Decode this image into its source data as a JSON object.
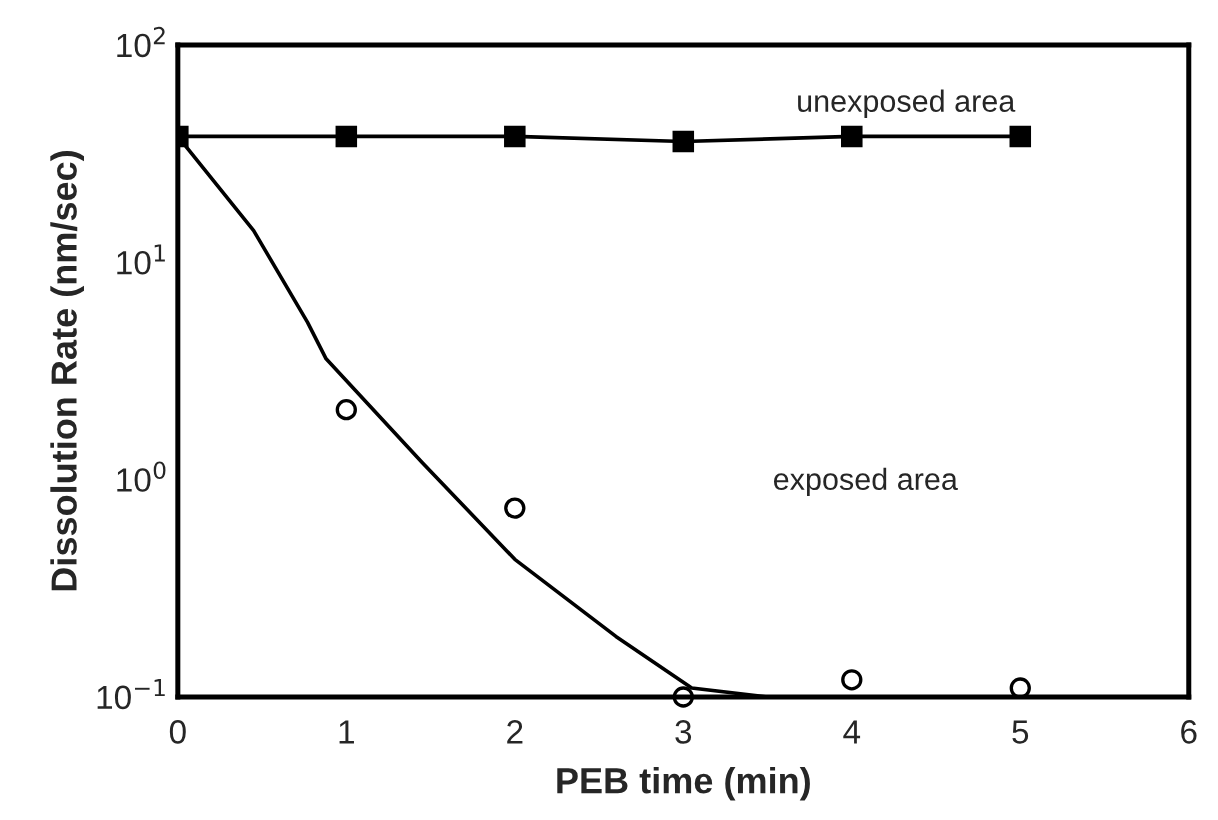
{
  "chart_data": {
    "type": "scatter",
    "xlabel": "PEB time (min)",
    "ylabel": "Dissolution Rate (nm/sec)",
    "log": "y",
    "xlim": [
      0,
      6
    ],
    "xticks": [
      0,
      1,
      2,
      3,
      4,
      5,
      6
    ],
    "ylim": [
      0.1,
      100
    ],
    "yticks": [
      {
        "value": 0.1,
        "label": "10$^{−1}$"
      },
      {
        "value": 1,
        "label": "10$^{0}$"
      },
      {
        "value": 10,
        "label": "10$^{1}$"
      },
      {
        "value": 100,
        "label": "10$^{2}$"
      }
    ],
    "grid": false,
    "legend": false,
    "series": [
      {
        "type": "line",
        "color": "#000000",
        "marker": "square",
        "line_style": "solid",
        "x": [
          0,
          1,
          2,
          3,
          4,
          5
        ],
        "values": [
          38,
          38,
          38,
          36,
          38,
          38
        ]
      },
      {
        "color": "#000000",
        "marker": "circle",
        "x": [
          1,
          2,
          3,
          4,
          5
        ],
        "values": [
          2.1,
          0.74,
          0.1,
          0.12,
          0.11
        ]
      },
      {
        "type": "line",
        "color": "#000000",
        "marker": "none",
        "line_style": "solid",
        "x": [
          0,
          0.45,
          0.77,
          0.88,
          1.45,
          2.0,
          2.6,
          3.05,
          3.5,
          3.9,
          4.4
        ],
        "values": [
          38,
          14,
          5.3,
          3.6,
          1.2,
          0.43,
          0.19,
          0.11,
          0.1,
          0.1,
          0.1
        ]
      }
    ],
    "annotations": [
      "unexposed area",
      "exposed area"
    ]
  }
}
